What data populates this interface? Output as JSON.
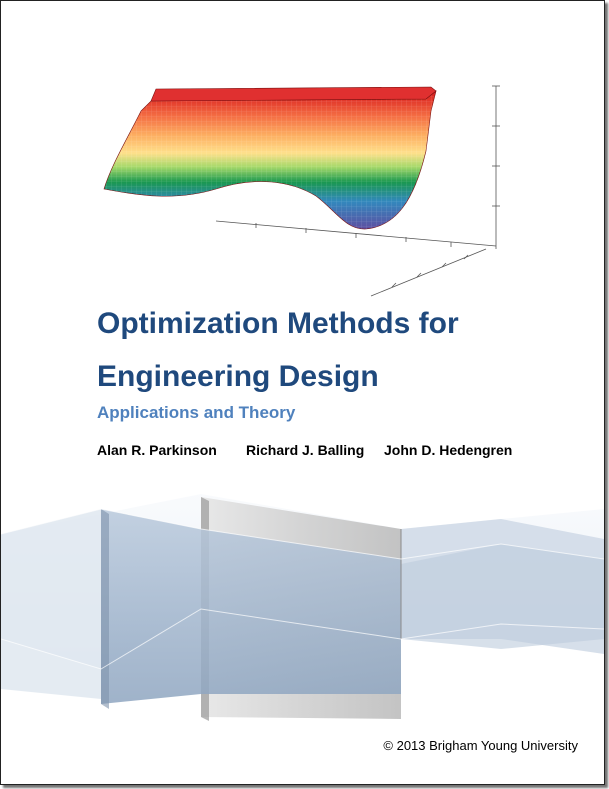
{
  "cover": {
    "title_line1": "Optimization Methods for",
    "title_line2": "Engineering Design",
    "subtitle": "Applications and Theory",
    "authors": [
      "Alan R. Parkinson",
      "Richard J. Balling",
      "John D. Hedengren"
    ],
    "copyright": "© 2013 Brigham Young University"
  },
  "colors": {
    "title": "#1f497d",
    "subtitle": "#4f81bd",
    "surface_gradient": [
      "#d7191c",
      "#f46d43",
      "#fdae61",
      "#fee08b",
      "#d9ef8b",
      "#66bd63",
      "#1a9850",
      "#3288bd",
      "#5e4fa2"
    ]
  }
}
